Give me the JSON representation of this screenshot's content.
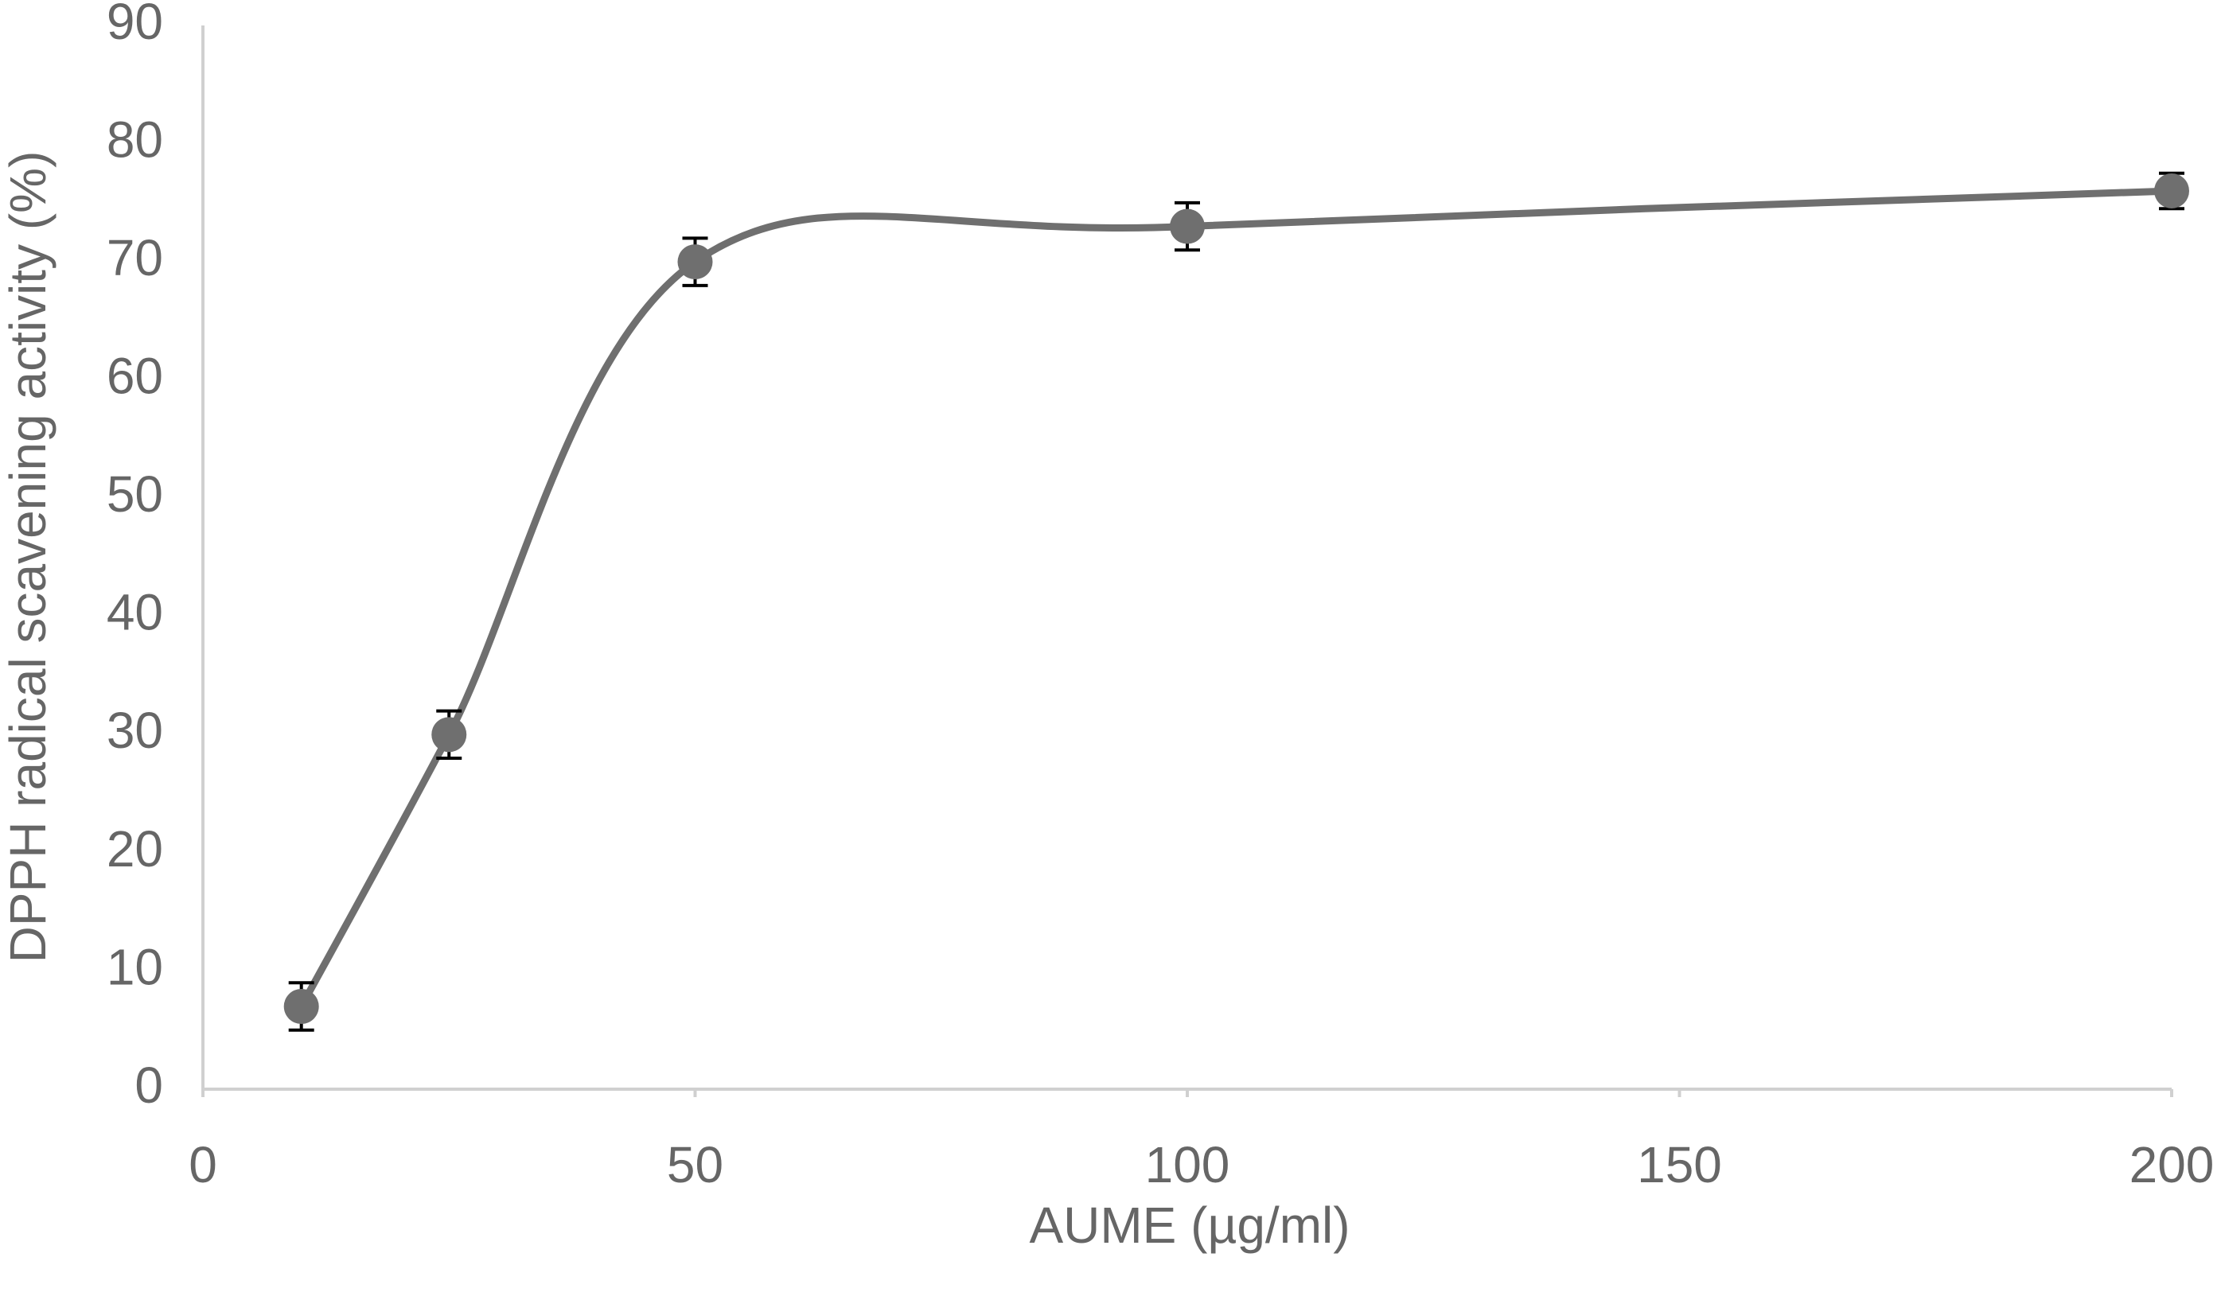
{
  "chart_data": {
    "type": "line",
    "smooth": true,
    "x_label": "AUME (µg/ml)",
    "y_label": "DPPH radical scavening activity (%)",
    "x": [
      10,
      25,
      50,
      100,
      200
    ],
    "series": [
      {
        "color": "#6f6f6f",
        "values": [
          7,
          30,
          70,
          73,
          76
        ],
        "errors": [
          2,
          2,
          2,
          2,
          1.5
        ]
      }
    ],
    "xlim": [
      0,
      200
    ],
    "xticks": [
      0,
      50,
      100,
      150,
      200
    ],
    "ylim": [
      0,
      90
    ],
    "yticks": [
      0,
      10,
      20,
      30,
      40,
      50,
      60,
      70,
      80,
      90
    ],
    "grid": false
  }
}
